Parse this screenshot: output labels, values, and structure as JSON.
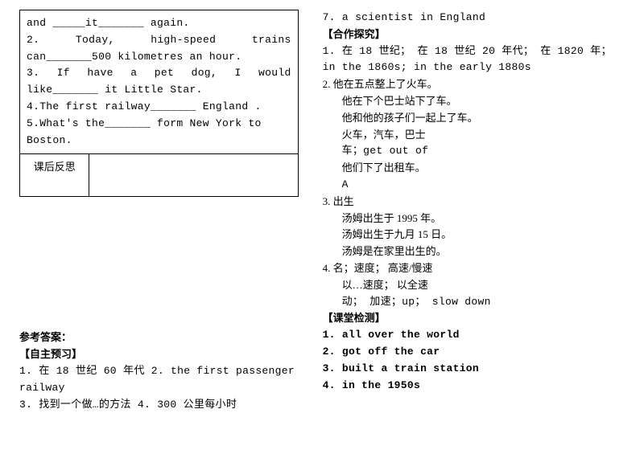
{
  "left_box": {
    "rows": [
      "and _____it_______ again.",
      "2.  Today,  high-speed  trains can_______500 kilometres an hour.",
      "3.  If  have  a  pet  dog,  I  would like_______ it Little Star.",
      "4.The first railway_______ England .",
      "5.What's the_______ form New York to Boston."
    ],
    "reflect_label": "课后反思"
  },
  "answers_left": {
    "heading": "参考答案：",
    "section1": "【自主预习】",
    "items": [
      "1. 在 18 世纪 60 年代    2. the first passenger railway",
      "3. 找到一个做…的方法  4. 300 公里每小时"
    ]
  },
  "right": {
    "line1": "7. a scientist in England",
    "section2": "【合作探究】",
    "group1": [
      "1. 在 18 世纪；  在 18 世纪 20 年代；  在 1820 年；  in the 1860s; in the early 1880s",
      "2. 他在五点整上了火车。"
    ],
    "group1_sub": [
      "他在下个巴士站下了车。",
      "他和他的孩子们一起上了车。",
      "火车，汽车，巴士",
      "车；get out of",
      "他们下了出租车。",
      "A"
    ],
    "group2": [
      "3. 出生"
    ],
    "group2_sub": [
      "汤姆出生于 1995 年。",
      "汤姆出生于九月 15 日。",
      "汤姆是在家里出生的。"
    ],
    "group3": [
      "4. 名；速度；  高速/慢速"
    ],
    "group3_sub": [
      "以…速度；  以全速",
      "动；  加速；up；  slow down"
    ],
    "section3": "【课堂检测】",
    "check": [
      "1. all over the world",
      "2. got off the car",
      "3. built a train station",
      "4. in the 1950s"
    ]
  }
}
